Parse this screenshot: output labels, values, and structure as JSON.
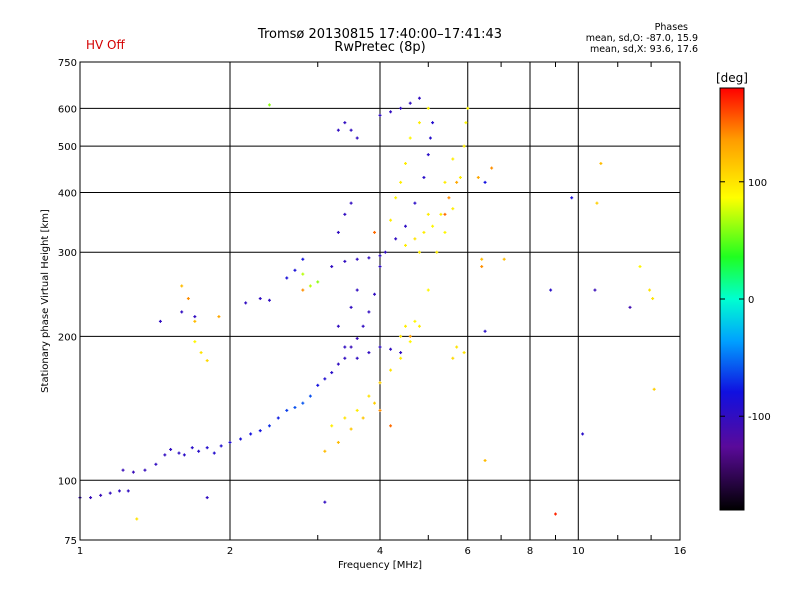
{
  "header": {
    "title_line1": "Tromsø 20130815 17:40:00–17:41:43",
    "title_line2": "RwPretec (8p)",
    "status": "HV Off"
  },
  "stats": {
    "heading": "Phases",
    "line_o": "mean, sd,O: -87.0, 15.9",
    "line_x": "mean, sd,X:  93.6, 17.6"
  },
  "colors": {
    "status": "#d40000",
    "grid": "#000000"
  },
  "chart_data": {
    "type": "scatter",
    "xlabel": "Frequency [MHz]",
    "ylabel": "Stationary phase Virtual Height [km]",
    "x_scale": "log",
    "y_scale": "log",
    "xlim": [
      1,
      16
    ],
    "ylim": [
      75,
      750
    ],
    "x_ticks": [
      1,
      2,
      4,
      6,
      8,
      10,
      16
    ],
    "x_tick_labels": [
      "1",
      "2",
      "4",
      "6",
      "8",
      "10",
      "16"
    ],
    "y_ticks": [
      75,
      100,
      200,
      300,
      400,
      500,
      600,
      750
    ],
    "y_tick_labels": [
      "75",
      "100",
      "200",
      "300",
      "400",
      "500",
      "600",
      "750"
    ],
    "grid": true,
    "colorbar": {
      "label": "[deg]",
      "range": [
        -180,
        180
      ],
      "ticks": [
        100,
        0,
        -100
      ],
      "tick_labels": [
        "100",
        "0",
        "-100"
      ]
    },
    "series": [
      {
        "points": [
          [
            1.0,
            92,
            -105
          ],
          [
            1.05,
            92,
            -105
          ],
          [
            1.1,
            93,
            -105
          ],
          [
            1.15,
            94,
            -102
          ],
          [
            1.2,
            95,
            -100
          ],
          [
            1.22,
            105,
            -105
          ],
          [
            1.28,
            104,
            -105
          ],
          [
            1.35,
            105,
            -103
          ],
          [
            1.42,
            108,
            -100
          ],
          [
            1.48,
            113,
            -100
          ],
          [
            1.52,
            116,
            -100
          ],
          [
            1.58,
            114,
            -98
          ],
          [
            1.62,
            113,
            -96
          ],
          [
            1.68,
            117,
            -95
          ],
          [
            1.73,
            115,
            -95
          ],
          [
            1.8,
            117,
            -92
          ],
          [
            1.86,
            114,
            -92
          ],
          [
            1.92,
            118,
            -90
          ],
          [
            2.0,
            120,
            -90
          ],
          [
            2.1,
            122,
            -85
          ],
          [
            2.2,
            125,
            -80
          ],
          [
            2.3,
            127,
            -80
          ],
          [
            2.4,
            130,
            -70
          ],
          [
            2.5,
            135,
            -75
          ],
          [
            2.6,
            140,
            -65
          ],
          [
            2.7,
            142,
            -60
          ],
          [
            2.8,
            145,
            -58
          ],
          [
            2.9,
            150,
            -60
          ],
          [
            3.0,
            158,
            -80
          ],
          [
            3.1,
            163,
            -90
          ],
          [
            3.2,
            168,
            -95
          ],
          [
            3.3,
            175,
            -100
          ],
          [
            3.4,
            180,
            -100
          ],
          [
            3.5,
            190,
            -105
          ],
          [
            3.6,
            198,
            -105
          ],
          [
            3.7,
            210,
            -100
          ],
          [
            3.8,
            225,
            -100
          ],
          [
            3.9,
            245,
            -100
          ],
          [
            4.0,
            280,
            -100
          ],
          [
            4.1,
            300,
            -100
          ],
          [
            4.3,
            320,
            -100
          ],
          [
            4.5,
            340,
            -98
          ],
          [
            4.7,
            380,
            -96
          ],
          [
            4.9,
            430,
            -95
          ],
          [
            5.0,
            480,
            -95
          ],
          [
            5.05,
            520,
            -92
          ],
          [
            5.1,
            560,
            -92
          ],
          [
            3.2,
            280,
            -100
          ],
          [
            3.4,
            287,
            -100
          ],
          [
            3.6,
            290,
            -100
          ],
          [
            3.8,
            292,
            -100
          ],
          [
            4.0,
            295,
            -100
          ],
          [
            3.3,
            330,
            -100
          ],
          [
            3.4,
            360,
            -100
          ],
          [
            3.5,
            380,
            -100
          ],
          [
            3.3,
            540,
            -100
          ],
          [
            3.4,
            560,
            -100
          ],
          [
            3.5,
            540,
            -100
          ],
          [
            3.6,
            520,
            -100
          ],
          [
            4.0,
            580,
            -100
          ],
          [
            4.2,
            590,
            -100
          ],
          [
            4.4,
            600,
            -100
          ],
          [
            4.6,
            615,
            -100
          ],
          [
            4.8,
            630,
            -100
          ],
          [
            3.4,
            190,
            -100
          ],
          [
            3.6,
            180,
            -100
          ],
          [
            3.8,
            185,
            -100
          ],
          [
            4.0,
            190,
            -100
          ],
          [
            4.2,
            188,
            -100
          ],
          [
            4.4,
            185,
            -100
          ],
          [
            3.3,
            210,
            -100
          ],
          [
            3.5,
            230,
            -100
          ],
          [
            3.6,
            250,
            -100
          ],
          [
            2.3,
            240,
            -100
          ],
          [
            2.4,
            238,
            -100
          ],
          [
            2.15,
            235,
            -100
          ],
          [
            1.6,
            225,
            -100
          ],
          [
            1.7,
            220,
            -100
          ],
          [
            1.45,
            215,
            -100
          ],
          [
            2.6,
            265,
            -85
          ],
          [
            2.7,
            275,
            -85
          ],
          [
            2.8,
            290,
            -80
          ],
          [
            3.1,
            90,
            -100
          ],
          [
            1.8,
            92,
            -100
          ],
          [
            1.25,
            95,
            -100
          ],
          [
            10.8,
            250,
            -105
          ],
          [
            12.7,
            230,
            -110
          ],
          [
            6.5,
            420,
            -80
          ],
          [
            6.5,
            205,
            -95
          ],
          [
            8.8,
            250,
            -95
          ],
          [
            10.2,
            125,
            -95
          ],
          [
            9.7,
            390,
            -85
          ]
        ]
      },
      {
        "points": [
          [
            3.2,
            130,
            95
          ],
          [
            3.4,
            135,
            100
          ],
          [
            3.6,
            140,
            95
          ],
          [
            3.8,
            150,
            100
          ],
          [
            4.0,
            160,
            110
          ],
          [
            4.2,
            170,
            100
          ],
          [
            4.4,
            180,
            95
          ],
          [
            4.6,
            195,
            90
          ],
          [
            4.8,
            210,
            95
          ],
          [
            5.0,
            250,
            90
          ],
          [
            5.2,
            300,
            95
          ],
          [
            5.4,
            330,
            90
          ],
          [
            5.6,
            370,
            95
          ],
          [
            5.8,
            430,
            95
          ],
          [
            5.9,
            500,
            95
          ],
          [
            5.95,
            560,
            90
          ],
          [
            6.0,
            600,
            90
          ],
          [
            5.7,
            190,
            100
          ],
          [
            5.6,
            180,
            105
          ],
          [
            5.9,
            185,
            100
          ],
          [
            4.5,
            310,
            95
          ],
          [
            4.7,
            320,
            100
          ],
          [
            4.9,
            330,
            95
          ],
          [
            5.1,
            340,
            90
          ],
          [
            5.3,
            360,
            95
          ],
          [
            4.2,
            350,
            95
          ],
          [
            4.3,
            390,
            90
          ],
          [
            4.4,
            420,
            95
          ],
          [
            4.5,
            460,
            95
          ],
          [
            4.6,
            520,
            90
          ],
          [
            4.8,
            560,
            95
          ],
          [
            5.0,
            600,
            90
          ],
          [
            4.5,
            210,
            95
          ],
          [
            4.7,
            215,
            90
          ],
          [
            4.4,
            200,
            100
          ],
          [
            3.9,
            145,
            110
          ],
          [
            3.7,
            135,
            115
          ],
          [
            3.5,
            128,
            115
          ],
          [
            3.3,
            120,
            120
          ],
          [
            3.1,
            115,
            120
          ],
          [
            2.4,
            610,
            60
          ],
          [
            1.7,
            195,
            90
          ],
          [
            1.75,
            185,
            100
          ],
          [
            1.8,
            178,
            105
          ],
          [
            1.65,
            240,
            140
          ],
          [
            1.7,
            215,
            120
          ],
          [
            1.3,
            83,
            100
          ],
          [
            2.8,
            270,
            70
          ],
          [
            2.9,
            255,
            70
          ],
          [
            3.0,
            260,
            60
          ],
          [
            6.5,
            110,
            120
          ],
          [
            6.4,
            290,
            120
          ],
          [
            6.4,
            280,
            140
          ],
          [
            7.1,
            290,
            120
          ],
          [
            10.9,
            380,
            110
          ],
          [
            11.1,
            460,
            120
          ],
          [
            13.9,
            250,
            100
          ],
          [
            14.1,
            240,
            100
          ],
          [
            13.3,
            280,
            90
          ],
          [
            14.2,
            155,
            110
          ],
          [
            5.0,
            360,
            95
          ],
          [
            5.4,
            420,
            95
          ],
          [
            5.6,
            470,
            95
          ],
          [
            4.8,
            300,
            95
          ]
        ]
      },
      {
        "points": [
          [
            5.5,
            390,
            140
          ],
          [
            5.7,
            420,
            130
          ],
          [
            5.4,
            360,
            150
          ],
          [
            4.2,
            130,
            150
          ],
          [
            4.0,
            140,
            140
          ],
          [
            6.3,
            430,
            130
          ],
          [
            9.0,
            85,
            170
          ],
          [
            3.9,
            330,
            150
          ],
          [
            4.6,
            200,
            135
          ],
          [
            2.8,
            250,
            140
          ],
          [
            1.6,
            255,
            120
          ],
          [
            1.9,
            220,
            130
          ],
          [
            6.7,
            450,
            140
          ]
        ]
      }
    ]
  }
}
